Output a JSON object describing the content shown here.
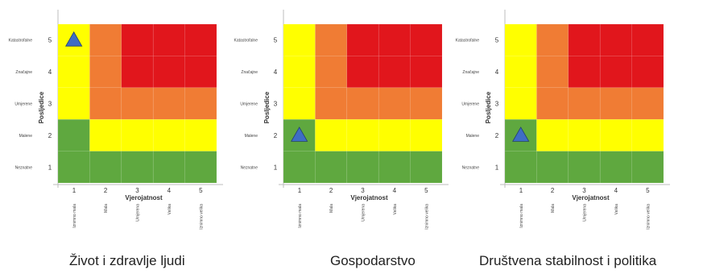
{
  "colors": {
    "green": "#5FA83F",
    "yellow": "#FFFF00",
    "orange": "#F07C34",
    "red": "#E1161C",
    "marker": "#3E6DC4",
    "axis": "#bdbdbd"
  },
  "matrix": {
    "y_axis_title": "Posljedice",
    "x_axis_title": "Vjerojatnost",
    "y_levels": [
      {
        "num": "5",
        "label": "Katastrofalne"
      },
      {
        "num": "4",
        "label": "Značajne"
      },
      {
        "num": "3",
        "label": "Umjerene"
      },
      {
        "num": "2",
        "label": "Malene"
      },
      {
        "num": "1",
        "label": "Neznatne"
      }
    ],
    "x_levels": [
      {
        "num": "1",
        "label": "Iznimno mala"
      },
      {
        "num": "2",
        "label": "Mala"
      },
      {
        "num": "3",
        "label": "Umjerena"
      },
      {
        "num": "4",
        "label": "Velika"
      },
      {
        "num": "5",
        "label": "Iznimno velika"
      }
    ],
    "cells": [
      [
        "yellow",
        "orange",
        "red",
        "red",
        "red"
      ],
      [
        "yellow",
        "orange",
        "red",
        "red",
        "red"
      ],
      [
        "yellow",
        "orange",
        "orange",
        "orange",
        "orange"
      ],
      [
        "green",
        "yellow",
        "yellow",
        "yellow",
        "yellow"
      ],
      [
        "green",
        "green",
        "green",
        "green",
        "green"
      ]
    ]
  },
  "panels": [
    {
      "caption": "Život i zdravlje ljudi",
      "marker": {
        "probability": 1,
        "consequence": 5
      }
    },
    {
      "caption": "Gospodarstvo",
      "marker": {
        "probability": 1,
        "consequence": 2
      }
    },
    {
      "caption": "Društvena stabilnost i politika",
      "marker": {
        "probability": 1,
        "consequence": 2
      }
    }
  ]
}
